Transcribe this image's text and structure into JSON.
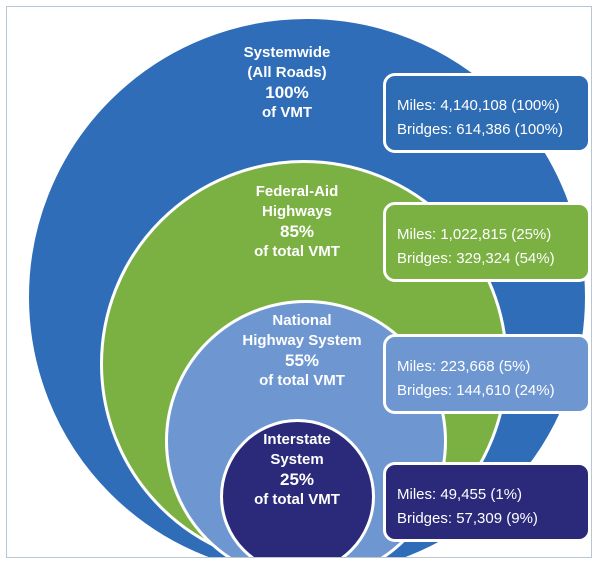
{
  "colors": {
    "systemwide": "#2f6db8",
    "federal_aid": "#7bb143",
    "nhs": "#6e97d2",
    "interstate": "#2b2a7a",
    "border": "#ffffff"
  },
  "systemwide": {
    "line1": "Systemwide",
    "line2": "(All Roads)",
    "percent": "100%",
    "suffix": "of VMT",
    "miles": "Miles: 4,140,108 (100%)",
    "bridges": "Bridges: 614,386 (100%)"
  },
  "federal_aid": {
    "line1": "Federal-Aid",
    "line2": "Highways",
    "percent": "85%",
    "suffix": "of total VMT",
    "miles": "Miles: 1,022,815 (25%)",
    "bridges": "Bridges: 329,324 (54%)"
  },
  "nhs": {
    "line1": "National",
    "line2": "Highway System",
    "percent": "55%",
    "suffix": "of total VMT",
    "miles": "Miles: 223,668 (5%)",
    "bridges": "Bridges: 144,610 (24%)"
  },
  "interstate": {
    "line1": "Interstate",
    "line2": "System",
    "percent": "25%",
    "suffix": "of total VMT",
    "miles": "Miles: 49,455 (1%)",
    "bridges": "Bridges: 57,309 (9%)"
  }
}
